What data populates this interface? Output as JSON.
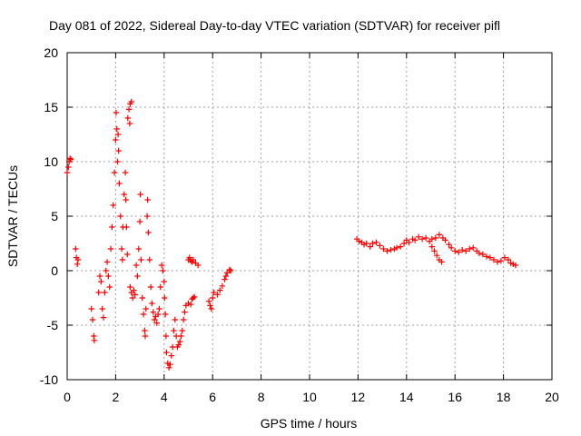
{
  "chart_data": {
    "type": "scatter",
    "title": "Day 081 of 2022, Sidereal Day-to-day VTEC variation (SDTVAR) for receiver pifl",
    "xlabel": "GPS time / hours",
    "ylabel": "SDTVAR / TECUs",
    "xlim": [
      0,
      20
    ],
    "ylim": [
      -10,
      20
    ],
    "xticks": [
      "0",
      "2",
      "4",
      "6",
      "8",
      "10",
      "12",
      "14",
      "16",
      "18",
      "20"
    ],
    "yticks": [
      "-10",
      "-5",
      "0",
      "5",
      "10",
      "15",
      "20"
    ],
    "grid": true,
    "marker": "+",
    "color": "#ff0000",
    "series": [
      {
        "name": "SDTVAR",
        "points": [
          [
            0.0,
            9.0
          ],
          [
            0.05,
            9.5
          ],
          [
            0.08,
            10.0
          ],
          [
            0.12,
            10.3
          ],
          [
            0.15,
            10.2
          ],
          [
            0.35,
            2.0
          ],
          [
            0.38,
            1.2
          ],
          [
            0.42,
            0.6
          ],
          [
            0.45,
            1.0
          ],
          [
            1.0,
            -3.5
          ],
          [
            1.05,
            -4.5
          ],
          [
            1.1,
            -6.0
          ],
          [
            1.12,
            -6.4
          ],
          [
            1.3,
            -2.0
          ],
          [
            1.35,
            -0.5
          ],
          [
            1.4,
            -1.0
          ],
          [
            1.45,
            -3.5
          ],
          [
            1.5,
            -4.3
          ],
          [
            1.55,
            -2.0
          ],
          [
            1.6,
            0.0
          ],
          [
            1.65,
            0.8
          ],
          [
            1.7,
            -0.5
          ],
          [
            1.75,
            -1.5
          ],
          [
            1.8,
            2.0
          ],
          [
            1.85,
            4.0
          ],
          [
            1.9,
            6.0
          ],
          [
            1.95,
            9.0
          ],
          [
            2.0,
            12.0
          ],
          [
            2.02,
            14.5
          ],
          [
            2.05,
            13.0
          ],
          [
            2.08,
            10.0
          ],
          [
            2.1,
            12.5
          ],
          [
            2.12,
            11.0
          ],
          [
            2.15,
            8.0
          ],
          [
            2.2,
            5.0
          ],
          [
            2.25,
            2.0
          ],
          [
            2.28,
            1.0
          ],
          [
            2.3,
            4.0
          ],
          [
            2.35,
            7.0
          ],
          [
            2.4,
            9.0
          ],
          [
            2.42,
            6.5
          ],
          [
            2.45,
            4.0
          ],
          [
            2.48,
            1.5
          ],
          [
            2.5,
            14.0
          ],
          [
            2.55,
            14.8
          ],
          [
            2.6,
            15.3
          ],
          [
            2.65,
            15.5
          ],
          [
            2.58,
            13.5
          ],
          [
            2.6,
            -1.5
          ],
          [
            2.65,
            -2.0
          ],
          [
            2.7,
            -2.5
          ],
          [
            2.75,
            -1.8
          ],
          [
            2.8,
            -2.2
          ],
          [
            2.85,
            0.5
          ],
          [
            2.9,
            -0.5
          ],
          [
            2.95,
            2.0
          ],
          [
            3.0,
            4.5
          ],
          [
            3.02,
            7.0
          ],
          [
            3.05,
            1.0
          ],
          [
            3.1,
            -2.5
          ],
          [
            3.15,
            -4.0
          ],
          [
            3.2,
            -5.5
          ],
          [
            3.22,
            -6.0
          ],
          [
            3.25,
            -3.5
          ],
          [
            3.3,
            5.0
          ],
          [
            3.32,
            6.5
          ],
          [
            3.35,
            3.5
          ],
          [
            3.4,
            1.0
          ],
          [
            3.45,
            -1.5
          ],
          [
            3.5,
            -3.0
          ],
          [
            3.55,
            -3.8
          ],
          [
            3.6,
            -4.5
          ],
          [
            3.65,
            -4.2
          ],
          [
            3.7,
            -4.8
          ],
          [
            3.75,
            -4.0
          ],
          [
            3.8,
            -3.5
          ],
          [
            3.85,
            -1.5
          ],
          [
            3.9,
            0.5
          ],
          [
            3.95,
            0.0
          ],
          [
            4.0,
            -1.0
          ],
          [
            4.02,
            -2.5
          ],
          [
            4.05,
            -4.0
          ],
          [
            4.08,
            -6.0
          ],
          [
            4.1,
            -7.5
          ],
          [
            4.15,
            -8.5
          ],
          [
            4.2,
            -8.9
          ],
          [
            4.25,
            -8.6
          ],
          [
            4.3,
            -7.8
          ],
          [
            4.35,
            -7.0
          ],
          [
            4.4,
            -5.5
          ],
          [
            4.45,
            -4.5
          ],
          [
            4.5,
            -6.0
          ],
          [
            4.55,
            -7.0
          ],
          [
            4.6,
            -6.8
          ],
          [
            4.65,
            -6.5
          ],
          [
            4.7,
            -6.0
          ],
          [
            4.75,
            -5.5
          ],
          [
            4.8,
            -4.5
          ],
          [
            4.85,
            -3.8
          ],
          [
            4.9,
            -3.2
          ],
          [
            5.0,
            -3.0
          ],
          [
            5.1,
            -3.1
          ],
          [
            5.15,
            -2.6
          ],
          [
            5.2,
            -2.5
          ],
          [
            5.25,
            -2.4
          ],
          [
            5.0,
            1.0
          ],
          [
            5.05,
            1.2
          ],
          [
            5.1,
            0.9
          ],
          [
            5.15,
            0.8
          ],
          [
            5.2,
            1.0
          ],
          [
            5.3,
            0.7
          ],
          [
            5.4,
            0.5
          ],
          [
            5.85,
            -2.8
          ],
          [
            5.9,
            -3.2
          ],
          [
            5.95,
            -3.5
          ],
          [
            6.0,
            -2.5
          ],
          [
            6.05,
            -2.0
          ],
          [
            6.2,
            -2.2
          ],
          [
            6.3,
            -1.8
          ],
          [
            6.4,
            -1.4
          ],
          [
            6.5,
            -0.8
          ],
          [
            6.55,
            -0.5
          ],
          [
            6.6,
            -0.2
          ],
          [
            6.7,
            0.1
          ],
          [
            6.75,
            0.0
          ],
          [
            11.95,
            2.9
          ],
          [
            12.05,
            2.7
          ],
          [
            12.15,
            2.6
          ],
          [
            12.25,
            2.4
          ],
          [
            12.35,
            2.5
          ],
          [
            12.5,
            2.2
          ],
          [
            12.6,
            2.5
          ],
          [
            12.75,
            2.6
          ],
          [
            12.9,
            2.3
          ],
          [
            13.05,
            2.0
          ],
          [
            13.2,
            1.8
          ],
          [
            13.35,
            1.9
          ],
          [
            13.5,
            2.0
          ],
          [
            13.6,
            2.1
          ],
          [
            13.75,
            2.2
          ],
          [
            13.9,
            2.5
          ],
          [
            14.0,
            2.8
          ],
          [
            14.1,
            2.6
          ],
          [
            14.25,
            2.9
          ],
          [
            14.35,
            2.8
          ],
          [
            14.5,
            3.1
          ],
          [
            14.65,
            2.9
          ],
          [
            14.8,
            3.0
          ],
          [
            14.95,
            2.7
          ],
          [
            15.05,
            2.2
          ],
          [
            15.15,
            1.8
          ],
          [
            15.25,
            1.4
          ],
          [
            15.35,
            1.0
          ],
          [
            15.45,
            0.8
          ],
          [
            15.05,
            2.9
          ],
          [
            15.2,
            3.0
          ],
          [
            15.35,
            3.3
          ],
          [
            15.5,
            3.0
          ],
          [
            15.6,
            2.8
          ],
          [
            15.75,
            2.4
          ],
          [
            15.85,
            2.1
          ],
          [
            16.0,
            1.8
          ],
          [
            16.15,
            1.7
          ],
          [
            16.3,
            1.9
          ],
          [
            16.45,
            1.8
          ],
          [
            16.6,
            2.0
          ],
          [
            16.75,
            2.1
          ],
          [
            16.9,
            1.8
          ],
          [
            17.0,
            1.6
          ],
          [
            17.15,
            1.5
          ],
          [
            17.3,
            1.3
          ],
          [
            17.45,
            1.2
          ],
          [
            17.6,
            1.0
          ],
          [
            17.75,
            0.8
          ],
          [
            17.9,
            0.9
          ],
          [
            18.05,
            1.2
          ],
          [
            18.2,
            1.0
          ],
          [
            18.3,
            0.7
          ],
          [
            18.4,
            0.6
          ],
          [
            18.5,
            0.5
          ]
        ]
      }
    ]
  }
}
